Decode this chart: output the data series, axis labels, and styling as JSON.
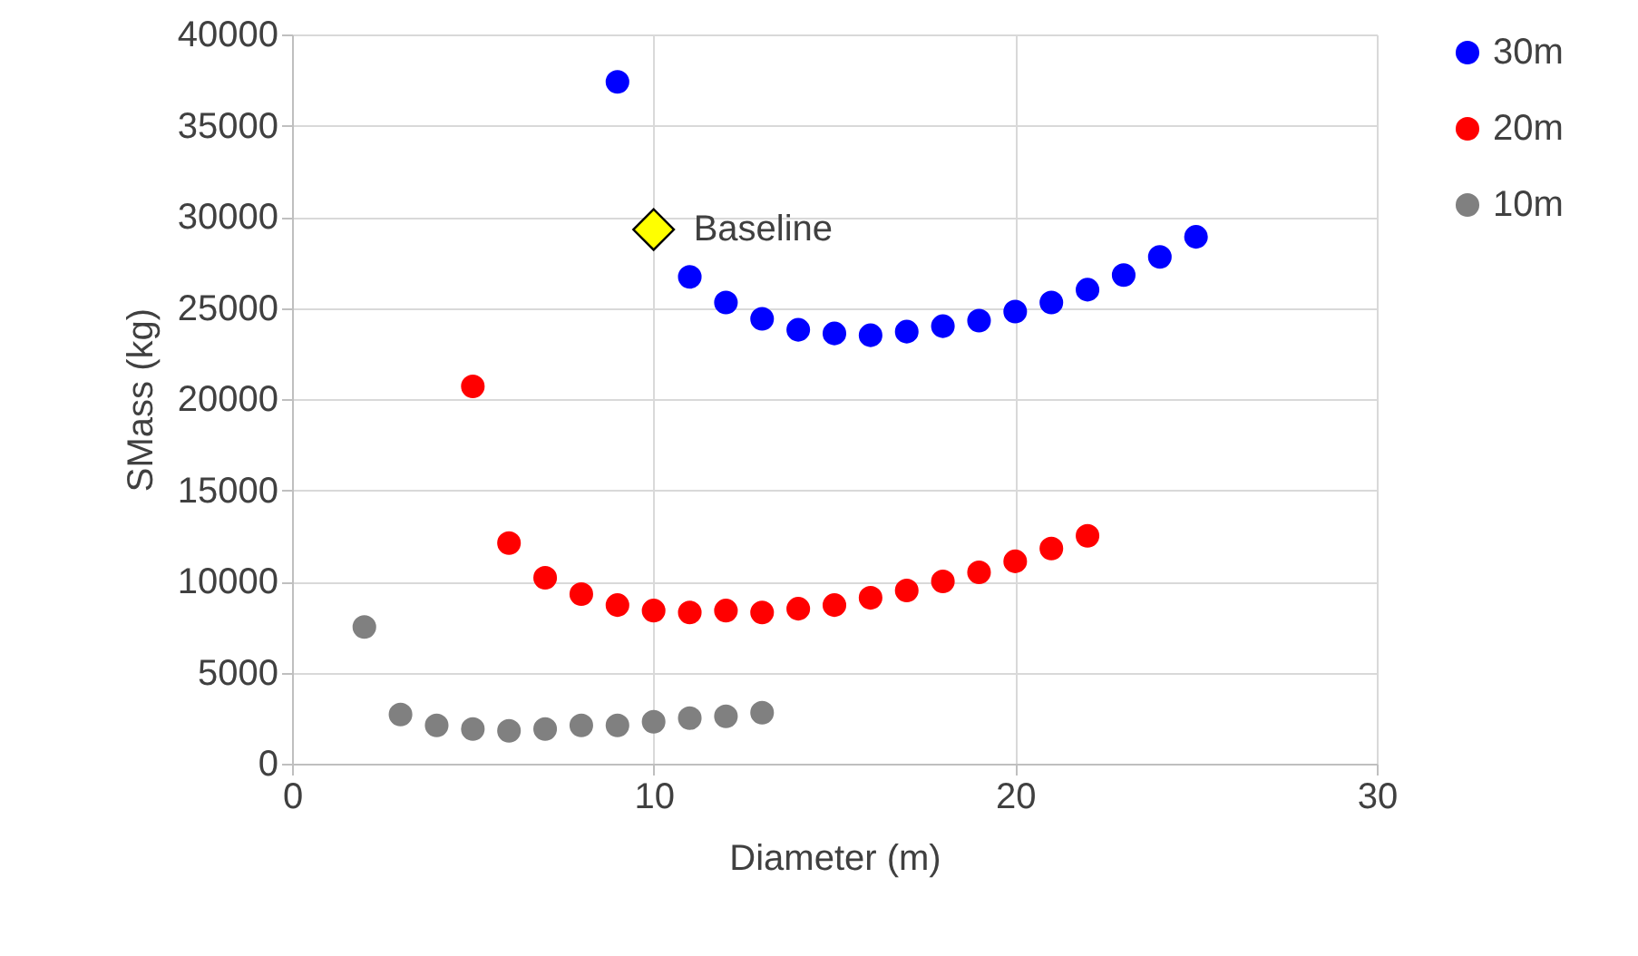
{
  "chart_data": {
    "type": "scatter",
    "xlabel": "Diameter (m)",
    "ylabel": "SMass (kg)",
    "xlim": [
      0,
      30
    ],
    "xticks": [
      0,
      10,
      20,
      30
    ],
    "ylim": [
      0,
      40000
    ],
    "yticks": [
      0,
      5000,
      10000,
      15000,
      20000,
      25000,
      30000,
      35000,
      40000
    ],
    "grid": true,
    "legend": "right",
    "marker": "circle",
    "series": [
      {
        "name": "30m",
        "color": "#0000ff",
        "x": [
          9,
          11,
          12,
          13,
          14,
          15,
          16,
          17,
          18,
          19,
          20,
          21,
          22,
          23,
          24,
          25
        ],
        "values": [
          37400,
          26700,
          25300,
          24400,
          23800,
          23600,
          23500,
          23700,
          24000,
          24300,
          24800,
          25300,
          26000,
          26800,
          27800,
          28900
        ]
      },
      {
        "name": "20m",
        "color": "#ff0000",
        "x": [
          5,
          6,
          7,
          8,
          9,
          10,
          11,
          12,
          13,
          14,
          15,
          16,
          17,
          18,
          19,
          20,
          21,
          22
        ],
        "values": [
          20700,
          12100,
          10200,
          9300,
          8700,
          8400,
          8300,
          8400,
          8300,
          8500,
          8700,
          9100,
          9500,
          10000,
          10500,
          11100,
          11800,
          12500
        ]
      },
      {
        "name": "10m",
        "color": "#808080",
        "x": [
          2,
          3,
          4,
          5,
          6,
          7,
          8,
          9,
          10,
          11,
          12,
          13
        ],
        "values": [
          7500,
          2700,
          2100,
          1900,
          1800,
          1900,
          2100,
          2100,
          2300,
          2500,
          2600,
          2800
        ]
      },
      {
        "name": "Baseline",
        "color": "#ffff00",
        "marker": "diamond",
        "x": [
          10
        ],
        "values": [
          29300
        ]
      }
    ]
  }
}
